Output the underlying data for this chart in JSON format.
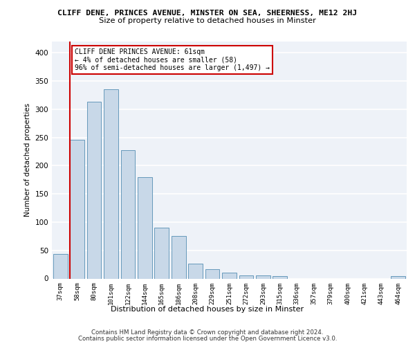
{
  "title1": "CLIFF DENE, PRINCES AVENUE, MINSTER ON SEA, SHEERNESS, ME12 2HJ",
  "title2": "Size of property relative to detached houses in Minster",
  "xlabel": "Distribution of detached houses by size in Minster",
  "ylabel": "Number of detached properties",
  "categories": [
    "37sqm",
    "58sqm",
    "80sqm",
    "101sqm",
    "122sqm",
    "144sqm",
    "165sqm",
    "186sqm",
    "208sqm",
    "229sqm",
    "251sqm",
    "272sqm",
    "293sqm",
    "315sqm",
    "336sqm",
    "357sqm",
    "379sqm",
    "400sqm",
    "421sqm",
    "443sqm",
    "464sqm"
  ],
  "values": [
    44,
    246,
    313,
    335,
    228,
    180,
    90,
    75,
    26,
    16,
    10,
    5,
    5,
    4,
    0,
    0,
    0,
    0,
    0,
    0,
    4
  ],
  "bar_color": "#c8d8e8",
  "bar_edge_color": "#6699bb",
  "highlight_line_color": "#cc0000",
  "annotation_text": "CLIFF DENE PRINCES AVENUE: 61sqm\n← 4% of detached houses are smaller (58)\n96% of semi-detached houses are larger (1,497) →",
  "annotation_box_color": "#ffffff",
  "annotation_box_edge_color": "#cc0000",
  "ylim": [
    0,
    420
  ],
  "yticks": [
    0,
    50,
    100,
    150,
    200,
    250,
    300,
    350,
    400
  ],
  "background_color": "#eef2f8",
  "footer_line1": "Contains HM Land Registry data © Crown copyright and database right 2024.",
  "footer_line2": "Contains public sector information licensed under the Open Government Licence v3.0."
}
